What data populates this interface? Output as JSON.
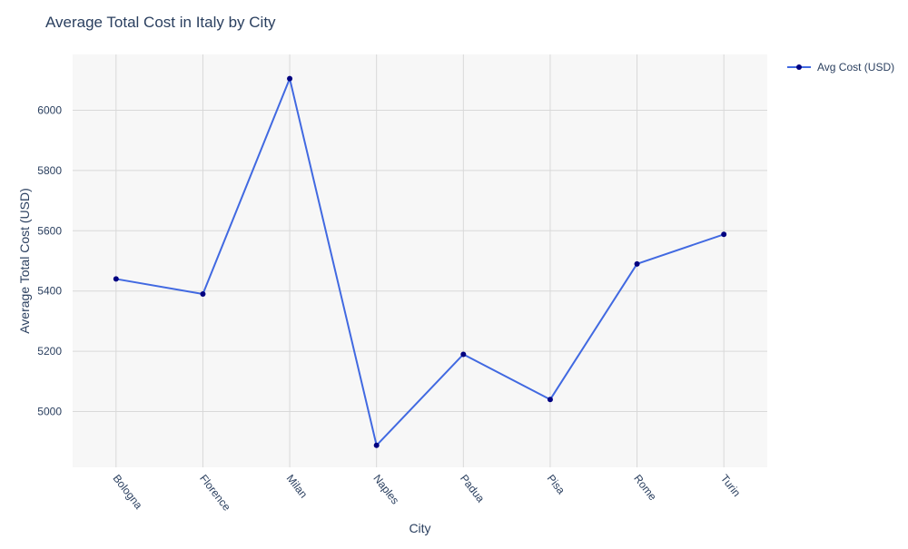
{
  "chart_data": {
    "type": "line",
    "title": "Average Total Cost in Italy by City",
    "xlabel": "City",
    "ylabel": "Average Total Cost (USD)",
    "categories": [
      "Bologna",
      "Florence",
      "Milan",
      "Naples",
      "Padua",
      "Pisa",
      "Rome",
      "Turin"
    ],
    "series": [
      {
        "name": "Avg Cost (USD)",
        "values": [
          5440,
          5390,
          6105,
          4888,
          5190,
          5040,
          5490,
          5588
        ],
        "line_color": "#4169e1",
        "marker_color": "#000080"
      }
    ],
    "ylim": [
      4815,
      6185
    ],
    "yticks": [
      5000,
      5200,
      5400,
      5600,
      5800,
      6000
    ],
    "grid": true,
    "legend_position": "top-right",
    "plot_background": "#f7f7f7",
    "grid_color": "#d9d9d9"
  }
}
